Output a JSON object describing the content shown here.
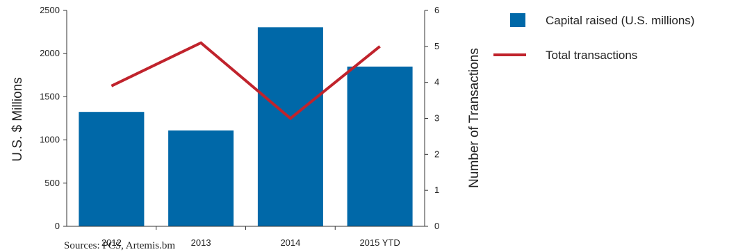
{
  "chart_data": {
    "type": "bar",
    "categories": [
      "2012",
      "2013",
      "2014",
      "2015 YTD"
    ],
    "series": [
      {
        "name": "Capital raised (U.S. millions)",
        "type": "bar",
        "axis": "left",
        "color": "#0068a8",
        "values": [
          1325,
          1110,
          2305,
          1850
        ]
      },
      {
        "name": "Total transactions",
        "type": "line",
        "axis": "right",
        "color": "#c0232c",
        "values": [
          3.9,
          5.1,
          3.0,
          5.0
        ]
      }
    ],
    "ylabel": "U.S. $ Millions",
    "ylim": [
      0,
      2500
    ],
    "yticks": [
      "0",
      "500",
      "1000",
      "1500",
      "2000",
      "2500"
    ],
    "y2label": "Number of Transactions",
    "y2lim": [
      0,
      6
    ],
    "y2ticks": [
      "0",
      "1",
      "2",
      "3",
      "4",
      "5",
      "6"
    ],
    "grid": false,
    "legend_position": "right",
    "source_note": "Sources: PCS, Artemis.bm"
  }
}
